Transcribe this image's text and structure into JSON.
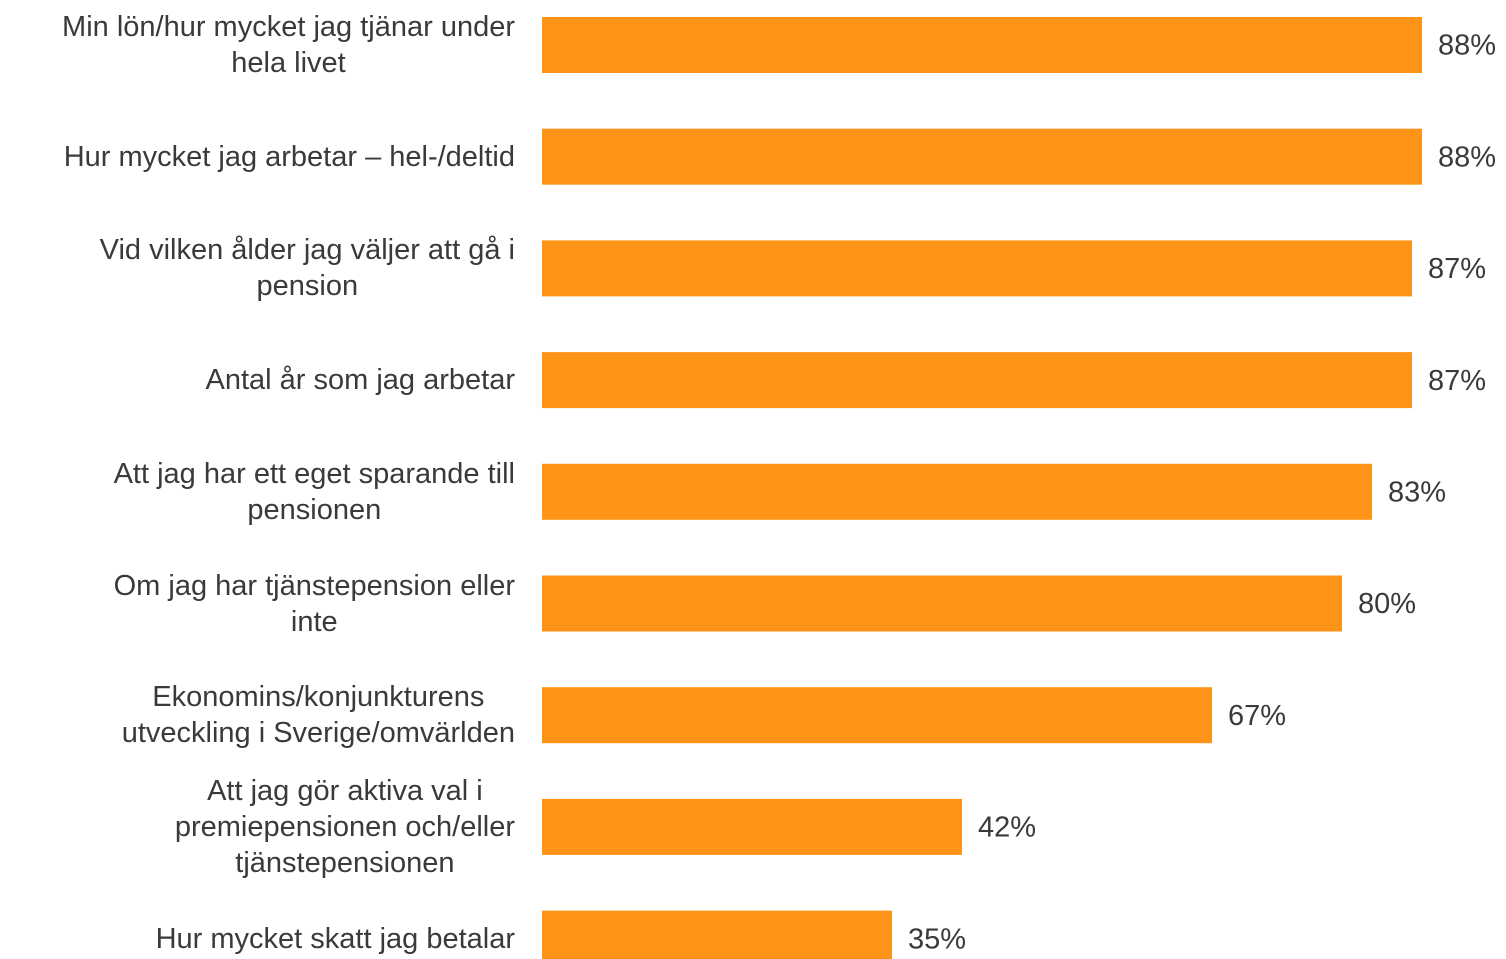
{
  "chart_data": {
    "type": "bar",
    "orientation": "horizontal",
    "color": "#fd9317",
    "categories": [
      "Min lön/hur mycket jag tjänar under\nhela livet",
      "Hur mycket jag arbetar – hel-/deltid",
      "Vid vilken ålder jag väljer att gå i\npension",
      "Antal år som jag arbetar",
      "Att jag har ett eget sparande till\npensionen",
      "Om jag har tjänstepension eller\ninte",
      "Ekonomins/konjunkturens\nutveckling i Sverige/omvärlden",
      "Att jag gör aktiva val i\npremiepensionen och/eller\ntjänstepensionen",
      "Hur mycket skatt jag betalar"
    ],
    "values": [
      88,
      88,
      87,
      87,
      83,
      80,
      67,
      42,
      35
    ],
    "value_labels": [
      "88%",
      "88%",
      "87%",
      "87%",
      "83%",
      "80%",
      "67%",
      "42%",
      "35%"
    ]
  }
}
